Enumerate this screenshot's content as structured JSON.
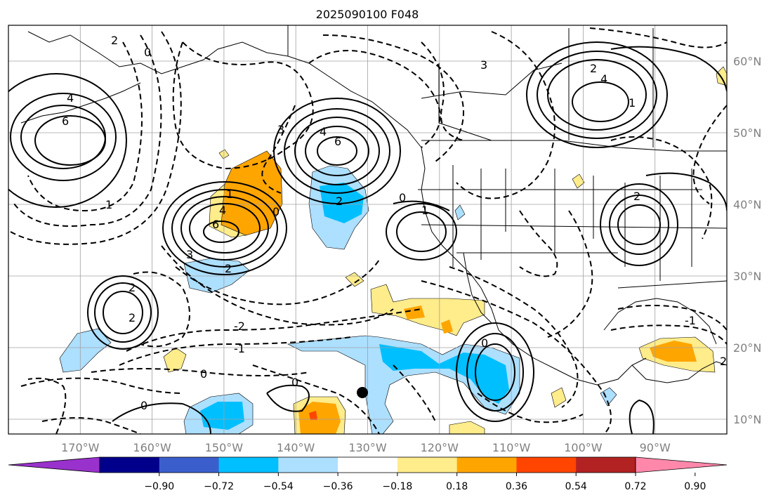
{
  "title": "2025090100 F048",
  "map": {
    "lon_labels": [
      "170°W",
      "160°W",
      "150°W",
      "140°W",
      "130°W",
      "120°W",
      "110°W",
      "100°W",
      "90°W"
    ],
    "lat_labels": [
      "60°N",
      "50°N",
      "40°N",
      "30°N",
      "20°N",
      "10°N"
    ],
    "contour_labels": [
      "2",
      "0",
      "4",
      "6",
      "3",
      "4",
      "6",
      "4",
      "3",
      "2",
      "1",
      "0",
      "6",
      "4",
      "2",
      "3",
      "2",
      "1",
      "0",
      "2",
      "-2",
      "-1",
      "0",
      "2",
      "0",
      "0",
      "-1",
      "2",
      "1",
      "2",
      "0",
      "1"
    ]
  },
  "colorbar": {
    "ticks": [
      "−0.90",
      "−0.72",
      "−0.54",
      "−0.36",
      "−0.18",
      "0.18",
      "0.36",
      "0.54",
      "0.72",
      "0.90"
    ],
    "colors": [
      "#9932CC",
      "#00008B",
      "#3A5FCD",
      "#00BFFF",
      "#ADDFFF",
      "#FFFFFF",
      "#FFEC8B",
      "#FFA500",
      "#FF4500",
      "#B22222",
      "#FF88AA"
    ]
  },
  "colors": {
    "shade_light_blue": "#ADDFFF",
    "shade_blue": "#00BFFF",
    "shade_yellow": "#FFEC8B",
    "shade_orange": "#FFA500",
    "shade_red": "#FF4500",
    "contour": "#000000",
    "grid": "#a0a0a0",
    "marker": "#000000"
  }
}
